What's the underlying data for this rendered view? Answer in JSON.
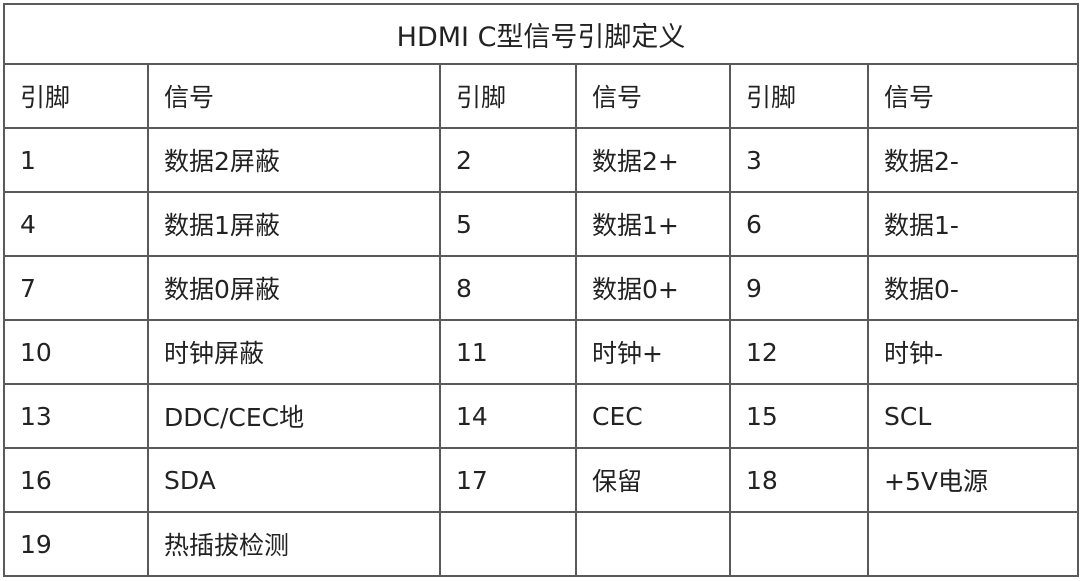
{
  "title": "HDMI C型信号引脚定义",
  "headers": [
    "引脚",
    "信号",
    "引脚",
    "信号",
    "引脚",
    "信号"
  ],
  "rows": [
    [
      "1",
      "数据2屏蔽",
      "2",
      "数据2+",
      "3",
      "数据2-"
    ],
    [
      "4",
      "数据1屏蔽",
      "5",
      "数据1+",
      "6",
      "数据1-"
    ],
    [
      "7",
      "数据0屏蔽",
      "8",
      "数据0+",
      "9",
      "数据0-"
    ],
    [
      "10",
      "时钟屏蔽",
      "11",
      "时钟+",
      "12",
      "时钟-"
    ],
    [
      "13",
      "DDC/CEC地",
      "14",
      "CEC",
      "15",
      "SCL"
    ],
    [
      "16",
      "SDA",
      "17",
      "保留",
      "18",
      "+5V电源"
    ],
    [
      "19",
      "热插拔检测",
      "",
      "",
      "",
      ""
    ]
  ]
}
